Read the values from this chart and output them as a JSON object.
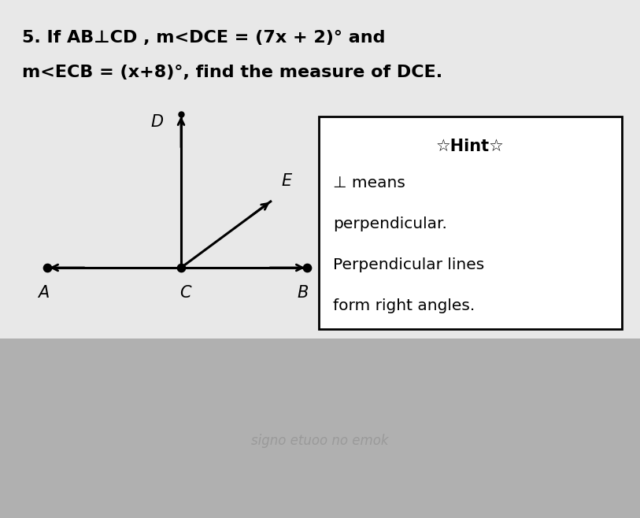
{
  "title_line1": "5. If AB⊥CD , m<DCE = (7x + 2)° and",
  "title_line2": "m<ECB = (x+8)°, find the measure of DCE.",
  "bg_top": "#e8e8e8",
  "bg_bottom": "#b8b8b8",
  "hint_title": "☆Hint☆",
  "hint_lines": [
    "⊥ means",
    "perpendicular.",
    "Perpendicular lines",
    "form right angles."
  ],
  "label_A": "A",
  "label_C": "C",
  "label_B": "B",
  "label_D": "D",
  "label_E": "E",
  "watermark": "signo etuoo no emok"
}
